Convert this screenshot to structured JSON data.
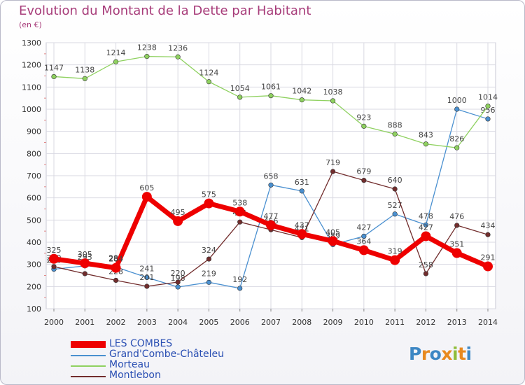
{
  "title": "Evolution du Montant de la Dette par Habitant",
  "subtitle": "(en €)",
  "logo": {
    "text": "Proxiti",
    "letters": [
      "P",
      "r",
      "o",
      "x",
      "i",
      "t",
      "i"
    ],
    "colors": [
      "#3d87c4",
      "#e8891f",
      "#3d87c4",
      "#e8891f",
      "#8fbd3a",
      "#e8891f",
      "#3d87c4"
    ]
  },
  "chart_data": {
    "type": "line",
    "x": [
      "2000",
      "2001",
      "2002",
      "2003",
      "2004",
      "2005",
      "2006",
      "2007",
      "2008",
      "2009",
      "2010",
      "2011",
      "2012",
      "2013",
      "2014"
    ],
    "y_ticks": [
      "100",
      "200",
      "300",
      "400",
      "500",
      "600",
      "700",
      "800",
      "900",
      "1000",
      "1100",
      "1200",
      "1300"
    ],
    "ylim": [
      100,
      1300
    ],
    "grid": true,
    "legend_position": "bottom-left",
    "series": [
      {
        "name": "Grand'Combe-Châteleu",
        "color": "#4a90d0",
        "values": [
          278,
          293,
          288,
          241,
          198,
          219,
          192,
          658,
          631,
          389,
          427,
          527,
          478,
          1000,
          956
        ],
        "labels": [
          "278",
          "293",
          "288",
          "241",
          "198",
          "219",
          "192",
          "658",
          "631",
          "389",
          "427",
          "527",
          "478",
          "1000",
          "956"
        ]
      },
      {
        "name": "Morteau",
        "color": "#8fd160",
        "values": [
          1147,
          1138,
          1214,
          1238,
          1236,
          1124,
          1054,
          1061,
          1042,
          1038,
          923,
          888,
          843,
          826,
          1014
        ],
        "labels": [
          "1147",
          "1138",
          "1214",
          "1238",
          "1236",
          "1124",
          "1054",
          "1061",
          "1042",
          "1038",
          "923",
          "888",
          "843",
          "826",
          "1014"
        ]
      },
      {
        "name": "Montlebon",
        "color": "#722d2d",
        "values": [
          290,
          258,
          228,
          201,
          220,
          324,
          491,
          456,
          421,
          719,
          679,
          640,
          258,
          476,
          434
        ],
        "labels": [
          "290",
          "",
          "228",
          "201",
          "220",
          "324",
          "491",
          "456",
          "421",
          "719",
          "679",
          "640",
          "258",
          "476",
          "434"
        ]
      },
      {
        "name": "LES COMBES",
        "color": "#ee0000",
        "values": [
          325,
          305,
          284,
          605,
          495,
          575,
          538,
          477,
          437,
          405,
          364,
          319,
          427,
          351,
          291
        ],
        "labels": [
          "325",
          "305",
          "284",
          "605",
          "495",
          "575",
          "538",
          "477",
          "437",
          "405",
          "364",
          "319",
          "427",
          "351",
          "291"
        ]
      }
    ],
    "legend": [
      {
        "name": "LES COMBES",
        "color": "#ee0000"
      },
      {
        "name": "Grand'Combe-Châteleu",
        "color": "#4a90d0"
      },
      {
        "name": "Morteau",
        "color": "#8fd160"
      },
      {
        "name": "Montlebon",
        "color": "#722d2d"
      }
    ]
  }
}
